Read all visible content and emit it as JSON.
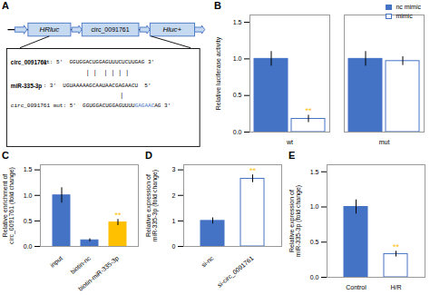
{
  "chart_data": [
    {
      "type": "diagram",
      "title": "A",
      "colors": [
        "#4472C4",
        "#C5D9F1"
      ],
      "annotations": [
        "HRluc",
        "circ_0091761",
        "Hluc+",
        "circ_0091761",
        "wt: 5'  GGUGGACUGGAGUUUCUCUUGAG 3'",
        "| |  | | | |",
        "miR-335-3p",
        ": 3'  UGUAAAAAGCAAUAACGAGAACU  5'",
        "circ_0091761 mut: 5'  GGUGGACUGGAGUUUU",
        "GAGAAC",
        "AG 3'",
        "|"
      ]
    },
    {
      "type": "bar",
      "title": "B",
      "categories": [
        "wt",
        "mut"
      ],
      "series": [
        {
          "name": "nc mimic",
          "color": "#4472C4",
          "values": [
            1.0,
            1.0
          ],
          "errors": [
            0.1,
            0.1
          ]
        },
        {
          "name": "mimic",
          "color": "#FFFFFF",
          "values": [
            0.18,
            0.97
          ],
          "errors": [
            0.05,
            0.06
          ]
        }
      ],
      "ylabel": "Relative luciferase activity",
      "ylim": [
        0,
        1.6
      ],
      "yticks": [
        {
          "value": 0,
          "label": "0.0"
        },
        0.5,
        {
          "value": 1,
          "label": "1.0"
        },
        1.5
      ],
      "legend": "upper right",
      "annotations": [
        {
          "text": "**",
          "category": "wt",
          "series": "mimic",
          "color": "#FFC000"
        }
      ]
    },
    {
      "type": "bar",
      "title": "C",
      "categories": [
        "input",
        "biotin-nc",
        "biotin-miR-335-3p"
      ],
      "values": [
        1.0,
        0.12,
        0.47
      ],
      "errors": [
        0.15,
        0.03,
        0.06
      ],
      "colors": [
        "#4472C4",
        "#4472C4",
        "#FFC000"
      ],
      "ylabel": "Relative enrichment of\ncirc_0091761 (fold change)",
      "ylim": [
        0,
        1.6
      ],
      "yticks": [
        {
          "value": 0,
          "label": "0.0"
        },
        0.5,
        {
          "value": 1,
          "label": "1.0"
        },
        1.5
      ],
      "annotations": [
        {
          "text": "**",
          "category": "biotin-miR-335-3p",
          "color": "#FFC000"
        }
      ]
    },
    {
      "type": "bar",
      "title": "D",
      "categories": [
        "si-nc",
        "si-circ_0091761"
      ],
      "values": [
        1.0,
        2.65
      ],
      "errors": [
        0.12,
        0.15
      ],
      "colors": [
        "#4472C4",
        "#FFFFFF"
      ],
      "ylabel": "Relative expression of\nmiR-335-3p (fold change)",
      "ylim": [
        0,
        3.2
      ],
      "yticks": [
        0,
        1,
        2,
        3
      ],
      "annotations": [
        {
          "text": "**",
          "category": "si-circ_0091761",
          "color": "#FFC000"
        }
      ]
    },
    {
      "type": "bar",
      "title": "E",
      "categories": [
        "Control",
        "H/R"
      ],
      "values": [
        1.0,
        0.33
      ],
      "errors": [
        0.1,
        0.04
      ],
      "colors": [
        "#4472C4",
        "#FFFFFF"
      ],
      "ylabel": "Relative expression of\nmiR-335-3p (fold change)",
      "ylim": [
        0,
        1.6
      ],
      "yticks": [
        {
          "value": 0,
          "label": "0.0"
        },
        0.5,
        {
          "value": 1,
          "label": "1.0"
        },
        1.5
      ],
      "annotations": [
        {
          "text": "**",
          "category": "H/R",
          "color": "#FFC000"
        }
      ]
    }
  ]
}
